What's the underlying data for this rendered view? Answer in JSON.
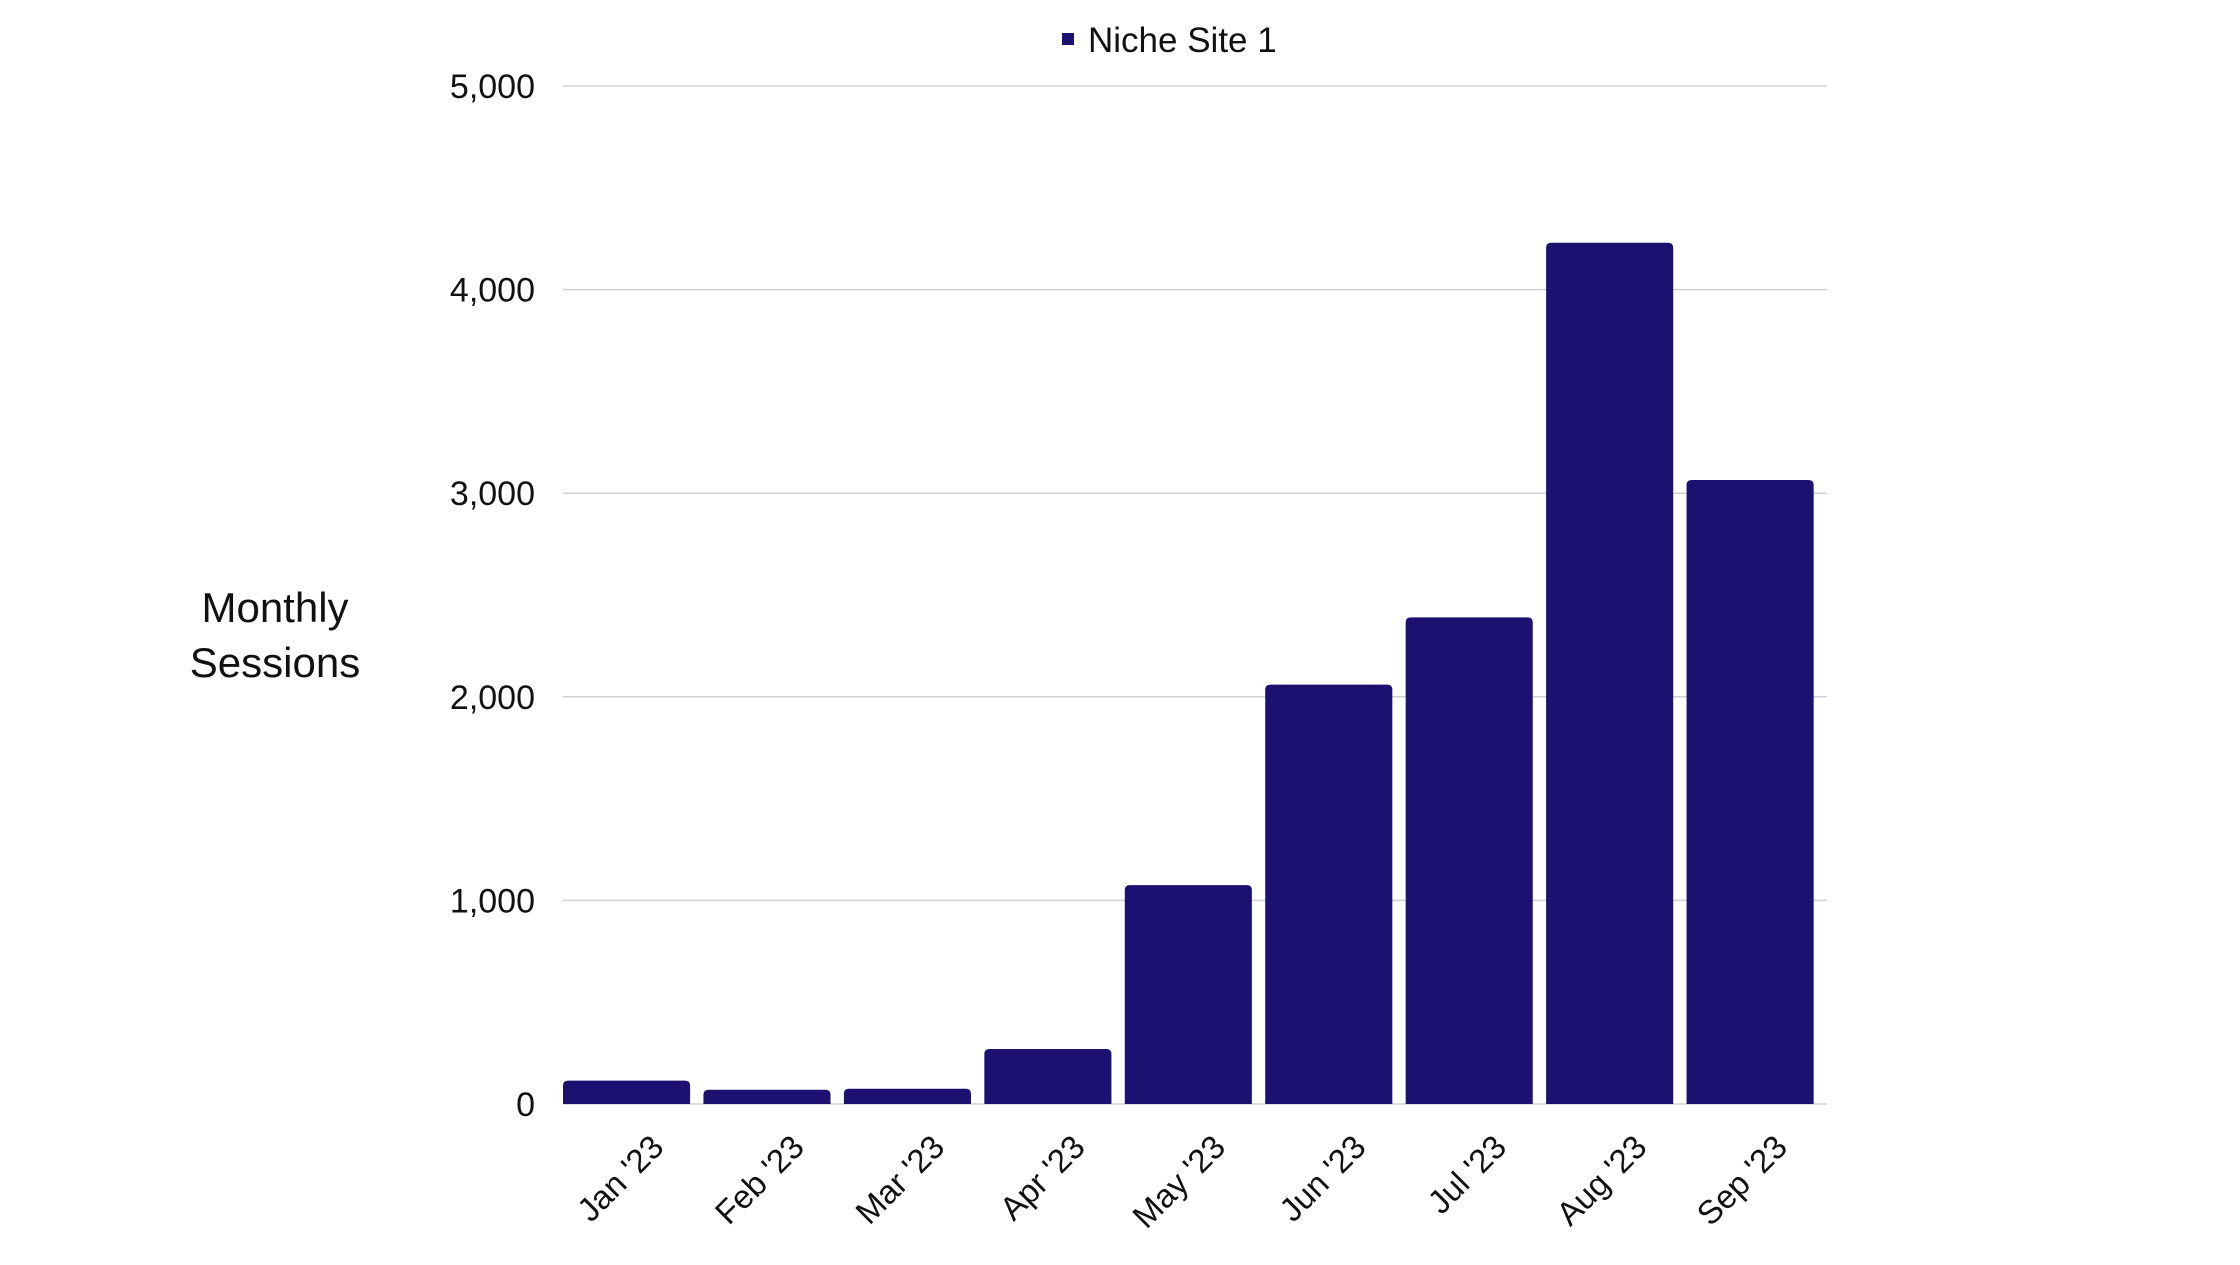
{
  "chart_data": {
    "type": "bar",
    "categories": [
      "Jan '23",
      "Feb '23",
      "Mar '23",
      "Apr '23",
      "May '23",
      "Jun '23",
      "Jul '23",
      "Aug '23",
      "Sep '23"
    ],
    "series": [
      {
        "name": "Niche Site 1",
        "values": [
          115,
          70,
          75,
          270,
          1075,
          2060,
          2390,
          4230,
          3065
        ]
      }
    ],
    "ylabel_lines": [
      "Monthly",
      "Sessions"
    ],
    "ylim": [
      0,
      5000
    ],
    "yticks": [
      0,
      1000,
      2000,
      3000,
      4000,
      5000
    ],
    "ytick_labels": [
      "0",
      "1,000",
      "2,000",
      "3,000",
      "4,000",
      "5,000"
    ],
    "grid": true,
    "legend_position": "top-center",
    "bar_color": "#1c1070",
    "grid_color": "#d0d0d0",
    "text_color": "#111111"
  }
}
